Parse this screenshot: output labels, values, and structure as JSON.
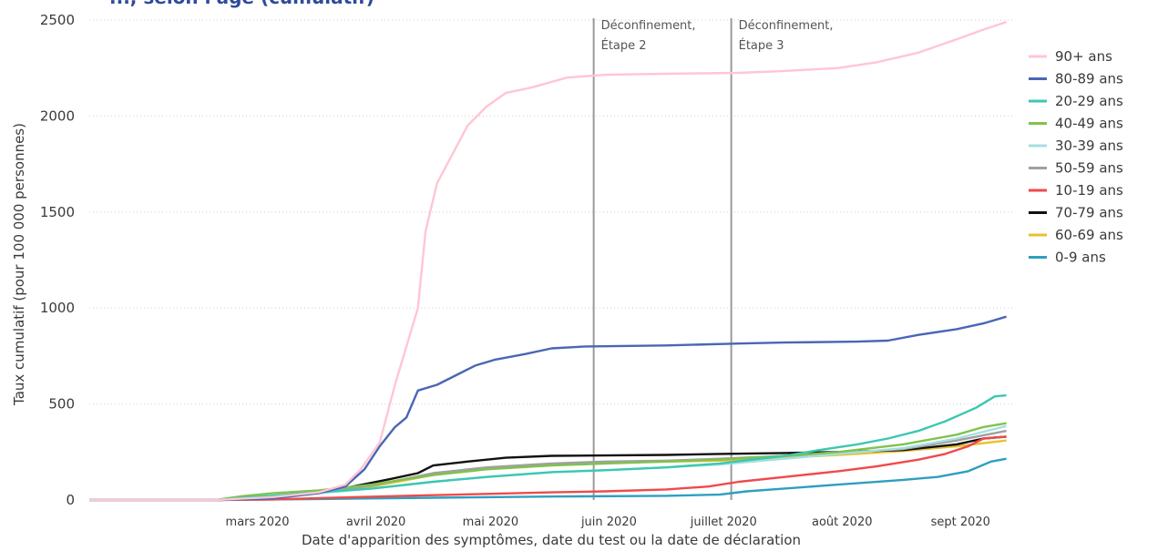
{
  "title_fragment": "..., selon l'âge (cumulatif)",
  "chart_data": {
    "type": "line",
    "ylabel": "Taux cumulatif (pour 100 000 personnes)",
    "xlabel": "Date d'apparition des symptômes, date du test ou la date de déclaration",
    "x_ticks": [
      {
        "date": "2020-03-01",
        "label": "mars 2020"
      },
      {
        "date": "2020-04-01",
        "label": "avril 2020"
      },
      {
        "date": "2020-05-01",
        "label": "mai 2020"
      },
      {
        "date": "2020-06-01",
        "label": "juin 2020"
      },
      {
        "date": "2020-07-01",
        "label": "juillet 2020"
      },
      {
        "date": "2020-08-01",
        "label": "août 2020"
      },
      {
        "date": "2020-09-01",
        "label": "sept 2020"
      }
    ],
    "xlim": [
      "2020-02-01",
      "2020-09-30"
    ],
    "y_ticks": [
      0,
      500,
      1000,
      1500,
      2000,
      2500
    ],
    "ylim": [
      0,
      2500
    ],
    "grid": "horizontal dotted",
    "legend_position": "right",
    "events": [
      {
        "date": "2020-06-12",
        "label_lines": [
          "Déconfinement,",
          "Étape 2"
        ]
      },
      {
        "date": "2020-07-18",
        "label_lines": [
          "Déconfinement,",
          "Étape 3"
        ]
      }
    ],
    "series": [
      {
        "name": "90+ ans",
        "color": "#ffc6d3",
        "points": [
          [
            "2020-02-01",
            0
          ],
          [
            "2020-03-05",
            0
          ],
          [
            "2020-03-20",
            15
          ],
          [
            "2020-04-01",
            40
          ],
          [
            "2020-04-08",
            80
          ],
          [
            "2020-04-12",
            160
          ],
          [
            "2020-04-17",
            300
          ],
          [
            "2020-04-21",
            600
          ],
          [
            "2020-04-24",
            800
          ],
          [
            "2020-04-27",
            1000
          ],
          [
            "2020-04-29",
            1400
          ],
          [
            "2020-05-02",
            1650
          ],
          [
            "2020-05-06",
            1800
          ],
          [
            "2020-05-10",
            1950
          ],
          [
            "2020-05-15",
            2050
          ],
          [
            "2020-05-20",
            2120
          ],
          [
            "2020-05-27",
            2150
          ],
          [
            "2020-06-05",
            2200
          ],
          [
            "2020-06-15",
            2215
          ],
          [
            "2020-07-01",
            2220
          ],
          [
            "2020-07-20",
            2225
          ],
          [
            "2020-08-01",
            2235
          ],
          [
            "2020-08-15",
            2250
          ],
          [
            "2020-08-25",
            2280
          ],
          [
            "2020-09-05",
            2330
          ],
          [
            "2020-09-15",
            2400
          ],
          [
            "2020-09-22",
            2450
          ],
          [
            "2020-09-28",
            2490
          ]
        ]
      },
      {
        "name": "80-89 ans",
        "color": "#4a66b5",
        "points": [
          [
            "2020-02-01",
            0
          ],
          [
            "2020-03-05",
            0
          ],
          [
            "2020-03-20",
            8
          ],
          [
            "2020-04-01",
            35
          ],
          [
            "2020-04-08",
            70
          ],
          [
            "2020-04-13",
            160
          ],
          [
            "2020-04-17",
            280
          ],
          [
            "2020-04-21",
            380
          ],
          [
            "2020-04-24",
            430
          ],
          [
            "2020-04-27",
            570
          ],
          [
            "2020-05-02",
            600
          ],
          [
            "2020-05-07",
            650
          ],
          [
            "2020-05-12",
            700
          ],
          [
            "2020-05-17",
            730
          ],
          [
            "2020-05-25",
            760
          ],
          [
            "2020-06-01",
            790
          ],
          [
            "2020-06-10",
            800
          ],
          [
            "2020-07-01",
            805
          ],
          [
            "2020-07-20",
            815
          ],
          [
            "2020-08-01",
            820
          ],
          [
            "2020-08-20",
            825
          ],
          [
            "2020-08-28",
            830
          ],
          [
            "2020-09-05",
            860
          ],
          [
            "2020-09-15",
            890
          ],
          [
            "2020-09-22",
            920
          ],
          [
            "2020-09-28",
            955
          ]
        ]
      },
      {
        "name": "20-29 ans",
        "color": "#3cc7b2",
        "points": [
          [
            "2020-02-01",
            0
          ],
          [
            "2020-03-05",
            0
          ],
          [
            "2020-03-15",
            15
          ],
          [
            "2020-04-01",
            40
          ],
          [
            "2020-04-15",
            60
          ],
          [
            "2020-05-01",
            95
          ],
          [
            "2020-05-15",
            120
          ],
          [
            "2020-06-01",
            145
          ],
          [
            "2020-06-15",
            155
          ],
          [
            "2020-07-01",
            170
          ],
          [
            "2020-07-15",
            190
          ],
          [
            "2020-08-01",
            230
          ],
          [
            "2020-08-10",
            260
          ],
          [
            "2020-08-20",
            290
          ],
          [
            "2020-08-28",
            320
          ],
          [
            "2020-09-05",
            360
          ],
          [
            "2020-09-12",
            410
          ],
          [
            "2020-09-20",
            480
          ],
          [
            "2020-09-25",
            540
          ],
          [
            "2020-09-28",
            545
          ]
        ]
      },
      {
        "name": "40-49 ans",
        "color": "#7fc34d",
        "points": [
          [
            "2020-02-01",
            0
          ],
          [
            "2020-03-05",
            0
          ],
          [
            "2020-03-12",
            20
          ],
          [
            "2020-03-20",
            35
          ],
          [
            "2020-04-01",
            50
          ],
          [
            "2020-04-15",
            80
          ],
          [
            "2020-05-01",
            130
          ],
          [
            "2020-05-15",
            160
          ],
          [
            "2020-06-01",
            180
          ],
          [
            "2020-06-15",
            190
          ],
          [
            "2020-07-01",
            200
          ],
          [
            "2020-07-15",
            210
          ],
          [
            "2020-08-01",
            230
          ],
          [
            "2020-08-15",
            250
          ],
          [
            "2020-09-01",
            290
          ],
          [
            "2020-09-15",
            340
          ],
          [
            "2020-09-22",
            380
          ],
          [
            "2020-09-28",
            400
          ]
        ]
      },
      {
        "name": "30-39 ans",
        "color": "#a6dfe0",
        "points": [
          [
            "2020-02-01",
            0
          ],
          [
            "2020-03-05",
            0
          ],
          [
            "2020-03-15",
            15
          ],
          [
            "2020-04-01",
            35
          ],
          [
            "2020-04-15",
            60
          ],
          [
            "2020-05-01",
            95
          ],
          [
            "2020-05-15",
            120
          ],
          [
            "2020-06-01",
            145
          ],
          [
            "2020-06-15",
            155
          ],
          [
            "2020-07-01",
            170
          ],
          [
            "2020-07-15",
            185
          ],
          [
            "2020-08-01",
            215
          ],
          [
            "2020-08-15",
            240
          ],
          [
            "2020-09-01",
            270
          ],
          [
            "2020-09-15",
            320
          ],
          [
            "2020-09-28",
            385
          ]
        ]
      },
      {
        "name": "50-59 ans",
        "color": "#a0a0a0",
        "points": [
          [
            "2020-02-01",
            0
          ],
          [
            "2020-03-05",
            0
          ],
          [
            "2020-03-15",
            12
          ],
          [
            "2020-04-01",
            40
          ],
          [
            "2020-04-15",
            75
          ],
          [
            "2020-05-01",
            140
          ],
          [
            "2020-05-15",
            170
          ],
          [
            "2020-06-01",
            190
          ],
          [
            "2020-06-15",
            200
          ],
          [
            "2020-07-01",
            205
          ],
          [
            "2020-07-15",
            215
          ],
          [
            "2020-08-01",
            230
          ],
          [
            "2020-08-15",
            245
          ],
          [
            "2020-09-01",
            265
          ],
          [
            "2020-09-15",
            310
          ],
          [
            "2020-09-28",
            360
          ]
        ]
      },
      {
        "name": "10-19 ans",
        "color": "#f04a4a",
        "points": [
          [
            "2020-02-01",
            0
          ],
          [
            "2020-03-05",
            0
          ],
          [
            "2020-03-20",
            3
          ],
          [
            "2020-04-01",
            10
          ],
          [
            "2020-05-01",
            25
          ],
          [
            "2020-06-01",
            40
          ],
          [
            "2020-06-15",
            45
          ],
          [
            "2020-07-01",
            55
          ],
          [
            "2020-07-12",
            70
          ],
          [
            "2020-07-20",
            95
          ],
          [
            "2020-08-01",
            120
          ],
          [
            "2020-08-15",
            150
          ],
          [
            "2020-08-25",
            175
          ],
          [
            "2020-09-05",
            210
          ],
          [
            "2020-09-12",
            240
          ],
          [
            "2020-09-18",
            280
          ],
          [
            "2020-09-22",
            320
          ],
          [
            "2020-09-28",
            330
          ]
        ]
      },
      {
        "name": "70-79 ans",
        "color": "#111111",
        "points": [
          [
            "2020-02-01",
            0
          ],
          [
            "2020-03-05",
            0
          ],
          [
            "2020-03-15",
            12
          ],
          [
            "2020-04-01",
            40
          ],
          [
            "2020-04-10",
            70
          ],
          [
            "2020-04-20",
            110
          ],
          [
            "2020-04-27",
            140
          ],
          [
            "2020-05-01",
            180
          ],
          [
            "2020-05-10",
            200
          ],
          [
            "2020-05-20",
            220
          ],
          [
            "2020-06-01",
            230
          ],
          [
            "2020-06-15",
            232
          ],
          [
            "2020-07-01",
            235
          ],
          [
            "2020-07-15",
            240
          ],
          [
            "2020-08-01",
            245
          ],
          [
            "2020-08-15",
            250
          ],
          [
            "2020-09-01",
            260
          ],
          [
            "2020-09-15",
            290
          ],
          [
            "2020-09-22",
            320
          ],
          [
            "2020-09-28",
            330
          ]
        ]
      },
      {
        "name": "60-69 ans",
        "color": "#e6c22e",
        "points": [
          [
            "2020-02-01",
            0
          ],
          [
            "2020-03-05",
            0
          ],
          [
            "2020-03-15",
            10
          ],
          [
            "2020-04-01",
            35
          ],
          [
            "2020-04-15",
            70
          ],
          [
            "2020-05-01",
            130
          ],
          [
            "2020-05-15",
            165
          ],
          [
            "2020-06-01",
            185
          ],
          [
            "2020-06-15",
            195
          ],
          [
            "2020-07-01",
            200
          ],
          [
            "2020-07-15",
            205
          ],
          [
            "2020-08-01",
            220
          ],
          [
            "2020-08-15",
            235
          ],
          [
            "2020-09-01",
            255
          ],
          [
            "2020-09-15",
            280
          ],
          [
            "2020-09-28",
            310
          ]
        ]
      },
      {
        "name": "0-9 ans",
        "color": "#2e9fbf",
        "points": [
          [
            "2020-02-01",
            0
          ],
          [
            "2020-03-05",
            0
          ],
          [
            "2020-04-01",
            5
          ],
          [
            "2020-05-01",
            12
          ],
          [
            "2020-06-01",
            18
          ],
          [
            "2020-07-01",
            22
          ],
          [
            "2020-07-15",
            28
          ],
          [
            "2020-07-22",
            45
          ],
          [
            "2020-08-01",
            60
          ],
          [
            "2020-08-15",
            80
          ],
          [
            "2020-09-01",
            105
          ],
          [
            "2020-09-10",
            120
          ],
          [
            "2020-09-18",
            150
          ],
          [
            "2020-09-24",
            200
          ],
          [
            "2020-09-28",
            215
          ]
        ]
      }
    ]
  }
}
